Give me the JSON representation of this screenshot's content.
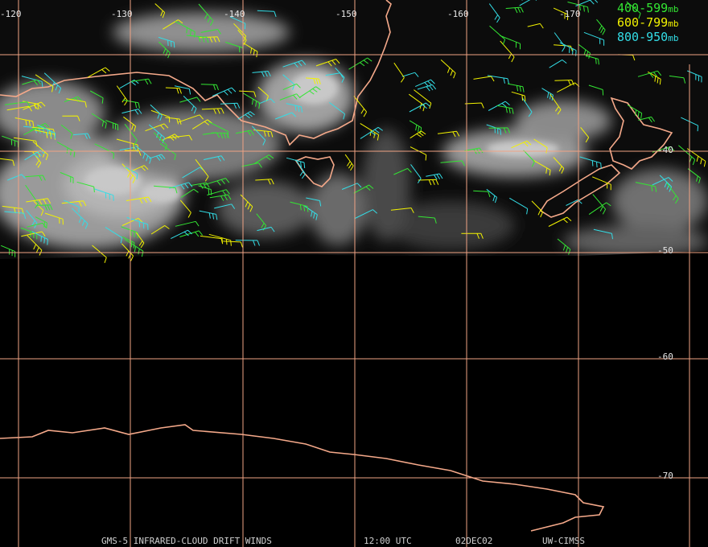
{
  "grid": {
    "lon_labels": [
      "-120",
      "-130",
      "-140",
      "-150",
      "-160",
      "-170"
    ],
    "lat_labels": [
      "-40",
      "-50",
      "-60",
      "-70"
    ]
  },
  "legend": [
    {
      "range": "400-599",
      "unit": "mb",
      "color": "#33e633"
    },
    {
      "range": "600-799",
      "unit": "mb",
      "color": "#f2f200"
    },
    {
      "range": "800-950",
      "unit": "mb",
      "color": "#33dde6"
    }
  ],
  "footer": [
    "GMS-5 INFRARED-CLOUD DRIFT WINDS",
    "12:00 UTC",
    "02DEC02",
    "UW-CIMSS"
  ]
}
